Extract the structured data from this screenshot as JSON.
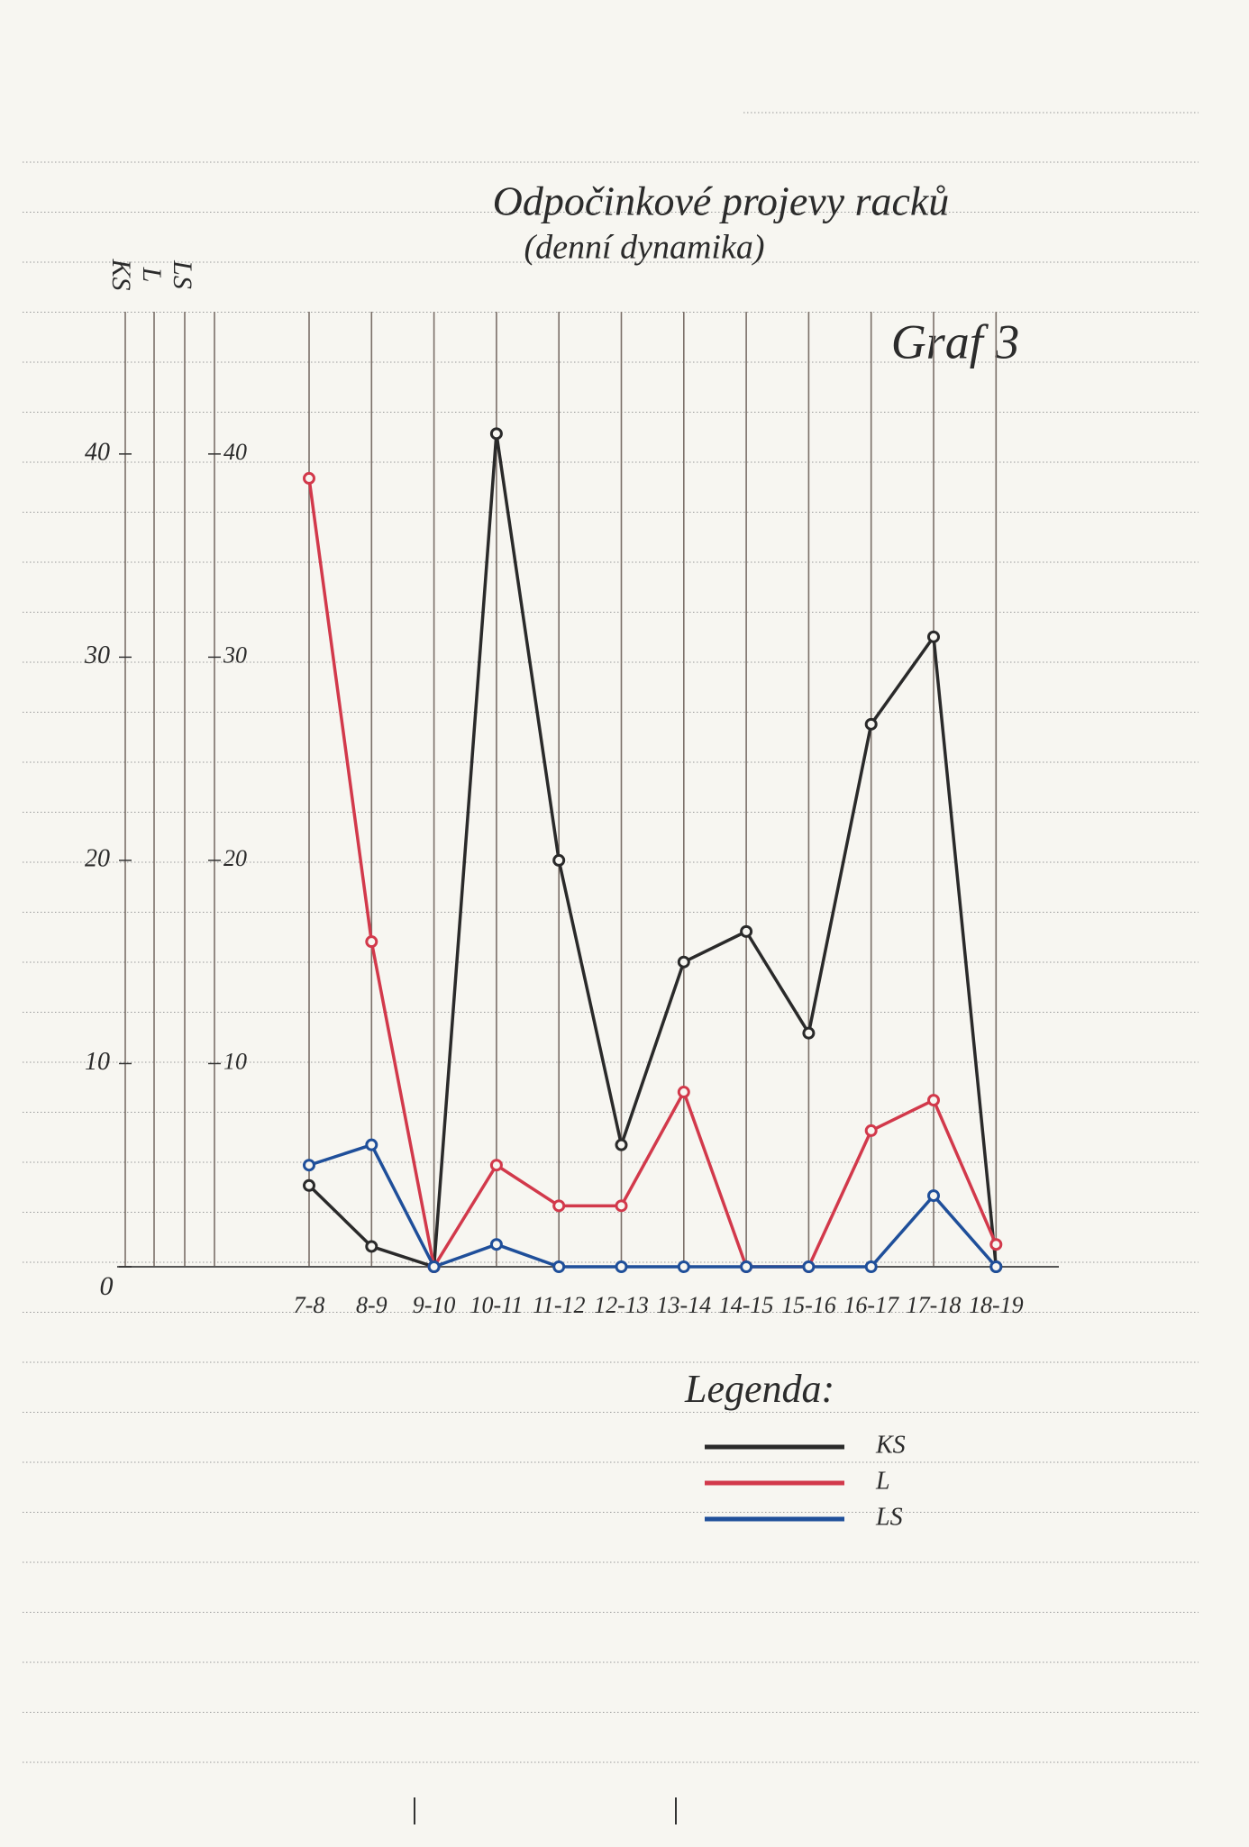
{
  "chart_data": {
    "type": "line",
    "title": "Odpočinkové projevy racků",
    "subtitle": "(denní dynamika)",
    "annotation": "Graf 3",
    "axis_labels": [
      "KS",
      "L",
      "LS"
    ],
    "categories": [
      "7-8",
      "8-9",
      "9-10",
      "10-11",
      "11-12",
      "12-13",
      "13-14",
      "14-15",
      "15-16",
      "16-17",
      "17-18",
      "18-19"
    ],
    "series": [
      {
        "name": "KS",
        "color": "#2a2a2a",
        "values": [
          4,
          1,
          0,
          41,
          20,
          6,
          15,
          16.5,
          11.5,
          26.7,
          31,
          0
        ]
      },
      {
        "name": "L",
        "color": "#d2394b",
        "values": [
          38.8,
          16,
          0,
          5,
          3,
          3,
          8.6,
          0,
          0,
          6.7,
          8.2,
          1.1
        ]
      },
      {
        "name": "LS",
        "color": "#1f4f9a",
        "values": [
          5,
          6,
          0,
          1.1,
          0,
          0,
          0,
          0,
          0,
          0,
          3.5,
          0
        ]
      }
    ],
    "ylim": [
      0,
      47
    ],
    "yticks": [
      0,
      10,
      20,
      30,
      40
    ],
    "y2lim": [
      0,
      47
    ],
    "y2ticks": [
      10,
      20,
      30,
      40
    ],
    "legend_title": "Legenda:"
  }
}
